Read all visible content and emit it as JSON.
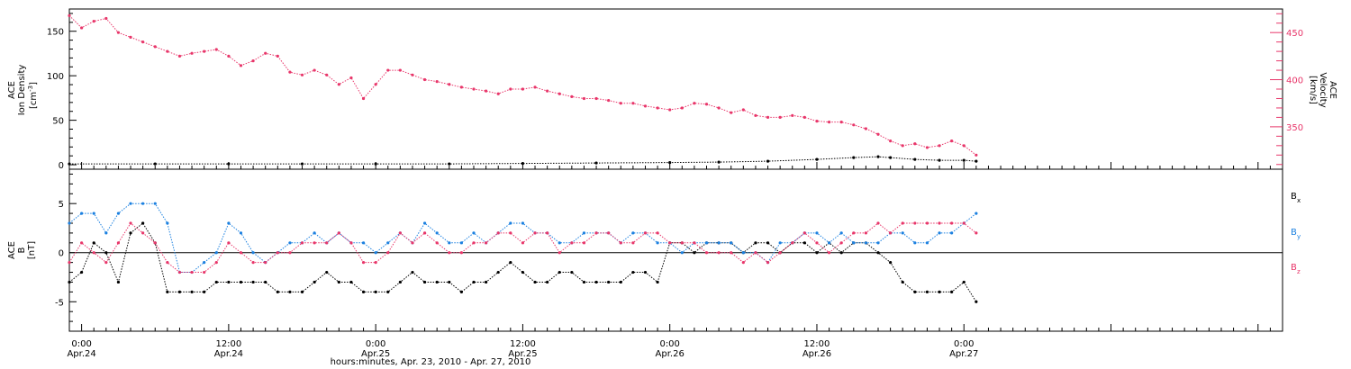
{
  "figure": {
    "xlabel": "hours:minutes, Apr. 23, 2010 - Apr. 27, 2010",
    "x_ticks": [
      {
        "time": "0:00",
        "date": "Apr.24",
        "hours": 0
      },
      {
        "time": "12:00",
        "date": "Apr.24",
        "hours": 12
      },
      {
        "time": "0:00",
        "date": "Apr.25",
        "hours": 24
      },
      {
        "time": "12:00",
        "date": "Apr.25",
        "hours": 36
      },
      {
        "time": "0:00",
        "date": "Apr.26",
        "hours": 48
      },
      {
        "time": "12:00",
        "date": "Apr.26",
        "hours": 60
      },
      {
        "time": "0:00",
        "date": "Apr.27",
        "hours": 72
      }
    ]
  },
  "colors": {
    "density": "#000000",
    "velocity": "#e8366a",
    "bx": "#000000",
    "by": "#1b80e0",
    "bz": "#e8366a"
  },
  "chart_data": [
    {
      "type": "scatter",
      "panel": "top",
      "title": "",
      "xlabel": "hours:minutes, Apr. 23, 2010 - Apr. 27, 2010",
      "ylabel": "ACE Ion Density [cm^-3]",
      "ylabel_lines": [
        "ACE",
        "Ion Density",
        "[cm",
        "-3",
        "]"
      ],
      "ylim": [
        -5,
        175
      ],
      "yticks": [
        0,
        50,
        100,
        150
      ],
      "y2label": "ACE Velocity [km/s]",
      "y2label_lines": [
        "ACE",
        "Velocity",
        "[km/s]"
      ],
      "y2lim": [
        305,
        475
      ],
      "y2ticks": [
        350,
        400,
        450
      ],
      "xlim": [
        -1,
        98
      ],
      "series": [
        {
          "name": "Ion Density",
          "axis": "left",
          "color": "#000000",
          "x": [
            -1,
            6,
            12,
            18,
            24,
            30,
            36,
            42,
            48,
            52,
            56,
            60,
            63,
            65,
            66,
            68,
            70,
            72,
            73
          ],
          "values": [
            1,
            1,
            1,
            1,
            1,
            1,
            1.5,
            2,
            2.5,
            3,
            4,
            6,
            8,
            9,
            8,
            6,
            5,
            5,
            4
          ]
        },
        {
          "name": "Velocity",
          "axis": "right",
          "color": "#e8366a",
          "x": [
            -1,
            0,
            1,
            2,
            3,
            4,
            5,
            6,
            7,
            8,
            9,
            10,
            11,
            12,
            13,
            14,
            15,
            16,
            17,
            18,
            19,
            20,
            21,
            22,
            23,
            24,
            25,
            26,
            27,
            28,
            29,
            30,
            31,
            32,
            33,
            34,
            35,
            36,
            37,
            38,
            39,
            40,
            41,
            42,
            43,
            44,
            45,
            46,
            47,
            48,
            49,
            50,
            51,
            52,
            53,
            54,
            55,
            56,
            57,
            58,
            59,
            60,
            61,
            62,
            63,
            64,
            65,
            66,
            67,
            68,
            69,
            70,
            71,
            72,
            73
          ],
          "values": [
            468,
            455,
            462,
            465,
            450,
            445,
            440,
            435,
            430,
            425,
            428,
            430,
            432,
            425,
            415,
            420,
            428,
            425,
            408,
            405,
            410,
            405,
            395,
            402,
            380,
            395,
            410,
            410,
            405,
            400,
            398,
            395,
            392,
            390,
            388,
            385,
            390,
            390,
            392,
            388,
            385,
            382,
            380,
            380,
            378,
            375,
            375,
            372,
            370,
            368,
            370,
            375,
            374,
            370,
            365,
            368,
            362,
            360,
            360,
            362,
            360,
            356,
            355,
            355,
            352,
            348,
            342,
            335,
            330,
            332,
            328,
            330,
            335,
            330,
            320
          ]
        }
      ]
    },
    {
      "type": "scatter",
      "panel": "bottom",
      "title": "",
      "xlabel": "hours:minutes, Apr. 23, 2010 - Apr. 27, 2010",
      "ylabel": "ACE B [nT]",
      "ylabel_lines": [
        "ACE",
        "B",
        "[nT]"
      ],
      "ylim": [
        -8,
        8.5
      ],
      "yticks": [
        -5,
        0,
        5
      ],
      "xlim": [
        -1,
        98
      ],
      "series": [
        {
          "name": "Bx",
          "label_main": "B",
          "label_sub": "x",
          "color": "#000000",
          "x": [
            -1,
            0,
            1,
            2,
            3,
            4,
            5,
            6,
            7,
            8,
            9,
            10,
            11,
            12,
            13,
            14,
            15,
            16,
            17,
            18,
            19,
            20,
            21,
            22,
            23,
            24,
            25,
            26,
            27,
            28,
            29,
            30,
            31,
            32,
            33,
            34,
            35,
            36,
            37,
            38,
            39,
            40,
            41,
            42,
            43,
            44,
            45,
            46,
            47,
            48,
            49,
            50,
            51,
            52,
            53,
            54,
            55,
            56,
            57,
            58,
            59,
            60,
            61,
            62,
            63,
            64,
            65,
            66,
            67,
            68,
            69,
            70,
            71,
            72,
            73
          ],
          "values": [
            -3,
            -2,
            1,
            0,
            -3,
            2,
            3,
            1,
            -4,
            -4,
            -4,
            -4,
            -3,
            -3,
            -3,
            -3,
            -3,
            -4,
            -4,
            -4,
            -3,
            -2,
            -3,
            -3,
            -4,
            -4,
            -4,
            -3,
            -2,
            -3,
            -3,
            -3,
            -4,
            -3,
            -3,
            -2,
            -1,
            -2,
            -3,
            -3,
            -2,
            -2,
            -3,
            -3,
            -3,
            -3,
            -2,
            -2,
            -3,
            1,
            1,
            0,
            1,
            1,
            1,
            0,
            1,
            1,
            0,
            1,
            1,
            0,
            1,
            0,
            1,
            1,
            0,
            -1,
            -3,
            -4,
            -4,
            -4,
            -4,
            -3,
            -5
          ]
        },
        {
          "name": "By",
          "label_main": "B",
          "label_sub": "y",
          "color": "#1b80e0",
          "x": [
            -1,
            0,
            1,
            2,
            3,
            4,
            5,
            6,
            7,
            8,
            9,
            10,
            11,
            12,
            13,
            14,
            15,
            16,
            17,
            18,
            19,
            20,
            21,
            22,
            23,
            24,
            25,
            26,
            27,
            28,
            29,
            30,
            31,
            32,
            33,
            34,
            35,
            36,
            37,
            38,
            39,
            40,
            41,
            42,
            43,
            44,
            45,
            46,
            47,
            48,
            49,
            50,
            51,
            52,
            53,
            54,
            55,
            56,
            57,
            58,
            59,
            60,
            61,
            62,
            63,
            64,
            65,
            66,
            67,
            68,
            69,
            70,
            71,
            72,
            73
          ],
          "values": [
            3,
            4,
            4,
            2,
            4,
            5,
            5,
            5,
            3,
            -2,
            -2,
            -1,
            0,
            3,
            2,
            0,
            -1,
            0,
            1,
            1,
            2,
            1,
            2,
            1,
            1,
            0,
            1,
            2,
            1,
            3,
            2,
            1,
            1,
            2,
            1,
            2,
            3,
            3,
            2,
            2,
            1,
            1,
            2,
            2,
            2,
            1,
            2,
            2,
            1,
            1,
            0,
            1,
            1,
            1,
            1,
            0,
            0,
            -1,
            1,
            1,
            2,
            2,
            1,
            2,
            1,
            1,
            1,
            2,
            2,
            1,
            1,
            2,
            2,
            3,
            4
          ]
        },
        {
          "name": "Bz",
          "label_main": "B",
          "label_sub": "z",
          "color": "#e8366a",
          "x": [
            -1,
            0,
            1,
            2,
            3,
            4,
            5,
            6,
            7,
            8,
            9,
            10,
            11,
            12,
            13,
            14,
            15,
            16,
            17,
            18,
            19,
            20,
            21,
            22,
            23,
            24,
            25,
            26,
            27,
            28,
            29,
            30,
            31,
            32,
            33,
            34,
            35,
            36,
            37,
            38,
            39,
            40,
            41,
            42,
            43,
            44,
            45,
            46,
            47,
            48,
            49,
            50,
            51,
            52,
            53,
            54,
            55,
            56,
            57,
            58,
            59,
            60,
            61,
            62,
            63,
            64,
            65,
            66,
            67,
            68,
            69,
            70,
            71,
            72,
            73
          ],
          "values": [
            -1,
            1,
            0,
            -1,
            1,
            3,
            2,
            1,
            -1,
            -2,
            -2,
            -2,
            -1,
            1,
            0,
            -1,
            -1,
            0,
            0,
            1,
            1,
            1,
            2,
            1,
            -1,
            -1,
            0,
            2,
            1,
            2,
            1,
            0,
            0,
            1,
            1,
            2,
            2,
            1,
            2,
            2,
            0,
            1,
            1,
            2,
            2,
            1,
            1,
            2,
            2,
            1,
            1,
            1,
            0,
            0,
            0,
            -1,
            0,
            -1,
            0,
            1,
            2,
            1,
            0,
            1,
            2,
            2,
            3,
            2,
            3,
            3,
            3,
            3,
            3,
            3,
            2
          ]
        }
      ]
    }
  ]
}
